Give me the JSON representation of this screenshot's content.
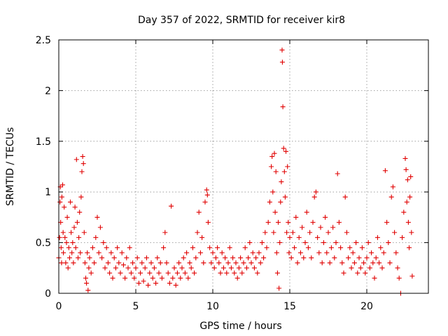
{
  "chart_data": {
    "type": "scatter",
    "title": "Day 357 of 2022, SRMTID for receiver kir8",
    "xlabel": "GPS time / hours",
    "ylabel": "SRMTID / TECUs",
    "xlim": [
      0,
      24
    ],
    "ylim": [
      0,
      2.5
    ],
    "x_ticks": [
      0,
      5,
      10,
      15,
      20
    ],
    "y_ticks": [
      0,
      0.5,
      1,
      1.5,
      2,
      2.5
    ],
    "x_tick_labels": [
      "0",
      "5",
      "10",
      "15",
      "20"
    ],
    "y_tick_labels": [
      "0",
      "0.5",
      "1",
      "1.5",
      "2",
      "2.5"
    ],
    "grid": true,
    "marker": "plus",
    "color": "#e00000",
    "series": [
      {
        "name": "SRMTID",
        "points": [
          [
            0.0,
            0.35
          ],
          [
            0.05,
            0.55
          ],
          [
            0.08,
            0.9
          ],
          [
            0.1,
            1.05
          ],
          [
            0.12,
            0.7
          ],
          [
            0.15,
            0.45
          ],
          [
            0.18,
            0.3
          ],
          [
            0.2,
            0.95
          ],
          [
            0.25,
            1.07
          ],
          [
            0.28,
            0.6
          ],
          [
            0.3,
            0.4
          ],
          [
            0.35,
            0.85
          ],
          [
            0.4,
            0.55
          ],
          [
            0.45,
            0.3
          ],
          [
            0.5,
            0.5
          ],
          [
            0.55,
            0.75
          ],
          [
            0.6,
            0.25
          ],
          [
            0.65,
            0.45
          ],
          [
            0.7,
            0.35
          ],
          [
            0.75,
            0.9
          ],
          [
            0.8,
            0.6
          ],
          [
            0.85,
            0.4
          ],
          [
            0.9,
            0.5
          ],
          [
            0.95,
            0.3
          ],
          [
            1.0,
            0.65
          ],
          [
            1.05,
            0.85
          ],
          [
            1.1,
            0.45
          ],
          [
            1.15,
            1.32
          ],
          [
            1.2,
            0.7
          ],
          [
            1.25,
            0.35
          ],
          [
            1.3,
            0.55
          ],
          [
            1.35,
            0.8
          ],
          [
            1.4,
            0.4
          ],
          [
            1.45,
            0.95
          ],
          [
            1.5,
            1.2
          ],
          [
            1.55,
            1.35
          ],
          [
            1.6,
            1.28
          ],
          [
            1.65,
            0.6
          ],
          [
            1.7,
            0.3
          ],
          [
            1.75,
            0.15
          ],
          [
            1.8,
            0.1
          ],
          [
            1.85,
            0.4
          ],
          [
            1.9,
            0.03
          ],
          [
            1.95,
            0.25
          ],
          [
            2.0,
            0.35
          ],
          [
            2.1,
            0.2
          ],
          [
            2.2,
            0.45
          ],
          [
            2.3,
            0.3
          ],
          [
            2.4,
            0.55
          ],
          [
            2.5,
            0.75
          ],
          [
            2.6,
            0.4
          ],
          [
            2.7,
            0.65
          ],
          [
            2.8,
            0.35
          ],
          [
            2.9,
            0.5
          ],
          [
            3.0,
            0.25
          ],
          [
            3.1,
            0.45
          ],
          [
            3.2,
            0.3
          ],
          [
            3.3,
            0.2
          ],
          [
            3.4,
            0.4
          ],
          [
            3.5,
            0.15
          ],
          [
            3.6,
            0.35
          ],
          [
            3.7,
            0.25
          ],
          [
            3.8,
            0.45
          ],
          [
            3.9,
            0.3
          ],
          [
            4.0,
            0.2
          ],
          [
            4.1,
            0.4
          ],
          [
            4.2,
            0.28
          ],
          [
            4.3,
            0.15
          ],
          [
            4.4,
            0.35
          ],
          [
            4.5,
            0.25
          ],
          [
            4.6,
            0.45
          ],
          [
            4.7,
            0.2
          ],
          [
            4.8,
            0.3
          ],
          [
            4.9,
            0.15
          ],
          [
            5.0,
            0.25
          ],
          [
            5.1,
            0.35
          ],
          [
            5.2,
            0.1
          ],
          [
            5.3,
            0.2
          ],
          [
            5.4,
            0.3
          ],
          [
            5.5,
            0.12
          ],
          [
            5.6,
            0.25
          ],
          [
            5.7,
            0.35
          ],
          [
            5.8,
            0.08
          ],
          [
            5.9,
            0.2
          ],
          [
            6.0,
            0.3
          ],
          [
            6.1,
            0.15
          ],
          [
            6.2,
            0.25
          ],
          [
            6.3,
            0.1
          ],
          [
            6.4,
            0.35
          ],
          [
            6.5,
            0.2
          ],
          [
            6.6,
            0.3
          ],
          [
            6.7,
            0.15
          ],
          [
            6.8,
            0.45
          ],
          [
            6.9,
            0.6
          ],
          [
            7.0,
            0.3
          ],
          [
            7.1,
            0.2
          ],
          [
            7.2,
            0.1
          ],
          [
            7.3,
            0.86
          ],
          [
            7.4,
            0.15
          ],
          [
            7.5,
            0.25
          ],
          [
            7.6,
            0.08
          ],
          [
            7.7,
            0.2
          ],
          [
            7.8,
            0.3
          ],
          [
            7.9,
            0.15
          ],
          [
            8.0,
            0.25
          ],
          [
            8.1,
            0.35
          ],
          [
            8.2,
            0.2
          ],
          [
            8.3,
            0.4
          ],
          [
            8.4,
            0.15
          ],
          [
            8.5,
            0.3
          ],
          [
            8.6,
            0.25
          ],
          [
            8.7,
            0.45
          ],
          [
            8.8,
            0.2
          ],
          [
            8.9,
            0.35
          ],
          [
            9.0,
            0.6
          ],
          [
            9.1,
            0.8
          ],
          [
            9.2,
            0.4
          ],
          [
            9.3,
            0.55
          ],
          [
            9.4,
            0.3
          ],
          [
            9.5,
            0.9
          ],
          [
            9.6,
            1.02
          ],
          [
            9.65,
            0.97
          ],
          [
            9.7,
            0.7
          ],
          [
            9.8,
            0.45
          ],
          [
            9.9,
            0.3
          ],
          [
            10.0,
            0.4
          ],
          [
            10.1,
            0.25
          ],
          [
            10.2,
            0.35
          ],
          [
            10.3,
            0.45
          ],
          [
            10.4,
            0.3
          ],
          [
            10.5,
            0.2
          ],
          [
            10.6,
            0.4
          ],
          [
            10.7,
            0.25
          ],
          [
            10.8,
            0.35
          ],
          [
            10.9,
            0.2
          ],
          [
            11.0,
            0.3
          ],
          [
            11.1,
            0.45
          ],
          [
            11.2,
            0.25
          ],
          [
            11.3,
            0.35
          ],
          [
            11.4,
            0.2
          ],
          [
            11.5,
            0.3
          ],
          [
            11.6,
            0.15
          ],
          [
            11.7,
            0.25
          ],
          [
            11.8,
            0.35
          ],
          [
            11.9,
            0.2
          ],
          [
            12.0,
            0.3
          ],
          [
            12.1,
            0.45
          ],
          [
            12.2,
            0.25
          ],
          [
            12.3,
            0.35
          ],
          [
            12.4,
            0.5
          ],
          [
            12.5,
            0.3
          ],
          [
            12.6,
            0.4
          ],
          [
            12.7,
            0.25
          ],
          [
            12.8,
            0.35
          ],
          [
            12.9,
            0.2
          ],
          [
            13.0,
            0.4
          ],
          [
            13.1,
            0.3
          ],
          [
            13.2,
            0.5
          ],
          [
            13.3,
            0.35
          ],
          [
            13.4,
            0.6
          ],
          [
            13.5,
            0.45
          ],
          [
            13.6,
            0.7
          ],
          [
            13.7,
            0.9
          ],
          [
            13.8,
            1.25
          ],
          [
            13.85,
            1.35
          ],
          [
            13.9,
            1.0
          ],
          [
            13.95,
            0.6
          ],
          [
            14.0,
            1.38
          ],
          [
            14.05,
            0.8
          ],
          [
            14.1,
            1.2
          ],
          [
            14.15,
            0.4
          ],
          [
            14.2,
            0.2
          ],
          [
            14.25,
            0.7
          ],
          [
            14.3,
            0.05
          ],
          [
            14.35,
            0.5
          ],
          [
            14.4,
            0.9
          ],
          [
            14.45,
            1.1
          ],
          [
            14.5,
            2.4
          ],
          [
            14.52,
            2.28
          ],
          [
            14.55,
            1.84
          ],
          [
            14.6,
            1.43
          ],
          [
            14.65,
            1.2
          ],
          [
            14.7,
            0.95
          ],
          [
            14.75,
            1.4
          ],
          [
            14.8,
            0.6
          ],
          [
            14.85,
            1.25
          ],
          [
            14.9,
            0.7
          ],
          [
            14.95,
            0.4
          ],
          [
            15.0,
            0.55
          ],
          [
            15.1,
            0.35
          ],
          [
            15.2,
            0.6
          ],
          [
            15.3,
            0.45
          ],
          [
            15.4,
            0.75
          ],
          [
            15.5,
            0.3
          ],
          [
            15.6,
            0.55
          ],
          [
            15.7,
            0.4
          ],
          [
            15.8,
            0.65
          ],
          [
            15.9,
            0.35
          ],
          [
            16.0,
            0.5
          ],
          [
            16.1,
            0.8
          ],
          [
            16.2,
            0.45
          ],
          [
            16.3,
            0.6
          ],
          [
            16.4,
            0.35
          ],
          [
            16.5,
            0.7
          ],
          [
            16.6,
            0.95
          ],
          [
            16.7,
            1.0
          ],
          [
            16.8,
            0.55
          ],
          [
            16.9,
            0.4
          ],
          [
            17.0,
            0.65
          ],
          [
            17.1,
            0.3
          ],
          [
            17.2,
            0.5
          ],
          [
            17.3,
            0.75
          ],
          [
            17.4,
            0.4
          ],
          [
            17.5,
            0.6
          ],
          [
            17.6,
            0.3
          ],
          [
            17.7,
            0.45
          ],
          [
            17.8,
            0.65
          ],
          [
            17.9,
            0.35
          ],
          [
            18.0,
            0.5
          ],
          [
            18.1,
            1.18
          ],
          [
            18.2,
            0.7
          ],
          [
            18.3,
            0.45
          ],
          [
            18.4,
            0.3
          ],
          [
            18.5,
            0.2
          ],
          [
            18.6,
            0.95
          ],
          [
            18.7,
            0.6
          ],
          [
            18.8,
            0.35
          ],
          [
            18.9,
            0.45
          ],
          [
            19.0,
            0.25
          ],
          [
            19.1,
            0.4
          ],
          [
            19.2,
            0.3
          ],
          [
            19.3,
            0.5
          ],
          [
            19.4,
            0.2
          ],
          [
            19.5,
            0.35
          ],
          [
            19.6,
            0.25
          ],
          [
            19.7,
            0.45
          ],
          [
            19.8,
            0.3
          ],
          [
            19.9,
            0.2
          ],
          [
            20.0,
            0.35
          ],
          [
            20.1,
            0.5
          ],
          [
            20.2,
            0.25
          ],
          [
            20.3,
            0.4
          ],
          [
            20.4,
            0.3
          ],
          [
            20.5,
            0.15
          ],
          [
            20.6,
            0.35
          ],
          [
            20.7,
            0.55
          ],
          [
            20.8,
            0.3
          ],
          [
            20.9,
            0.45
          ],
          [
            21.0,
            0.25
          ],
          [
            21.1,
            0.4
          ],
          [
            21.2,
            1.21
          ],
          [
            21.3,
            0.7
          ],
          [
            21.4,
            0.5
          ],
          [
            21.5,
            0.3
          ],
          [
            21.6,
            0.95
          ],
          [
            21.7,
            1.05
          ],
          [
            21.8,
            0.6
          ],
          [
            21.9,
            0.4
          ],
          [
            22.0,
            0.25
          ],
          [
            22.1,
            0.15
          ],
          [
            22.2,
            0.0
          ],
          [
            22.3,
            0.55
          ],
          [
            22.4,
            0.8
          ],
          [
            22.5,
            1.33
          ],
          [
            22.55,
            1.22
          ],
          [
            22.6,
            0.9
          ],
          [
            22.65,
            1.12
          ],
          [
            22.7,
            0.7
          ],
          [
            22.75,
            0.45
          ],
          [
            22.8,
            0.95
          ],
          [
            22.85,
            1.15
          ],
          [
            22.9,
            0.6
          ],
          [
            22.95,
            0.17
          ]
        ]
      }
    ]
  }
}
